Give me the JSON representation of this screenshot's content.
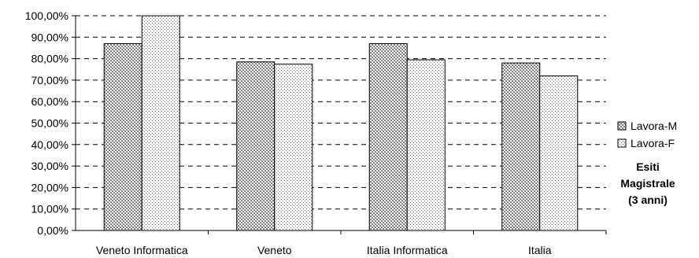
{
  "chart_data": {
    "type": "bar",
    "categories": [
      "Veneto Informatica",
      "Veneto",
      "Italia Informatica",
      "Italia"
    ],
    "series": [
      {
        "name": "Lavora-M",
        "values": [
          87,
          78.5,
          87,
          78
        ],
        "pattern": "crosshatch"
      },
      {
        "name": "Lavora-F",
        "values": [
          100,
          77.5,
          79.5,
          72
        ],
        "pattern": "dots"
      }
    ],
    "y_tick_labels": [
      "0,00%",
      "10,00%",
      "20,00%",
      "30,00%",
      "40,00%",
      "50,00%",
      "60,00%",
      "70,00%",
      "80,00%",
      "90,00%",
      "100,00%"
    ],
    "ylim": [
      0,
      100
    ],
    "grid": "dashed horizontal",
    "legend_placement": "right",
    "legend_title_lines": [
      "Esiti",
      "Magistrale",
      "(3 anni)"
    ],
    "colors": {
      "bar_border": "#000000",
      "grid": "#000000",
      "background": "#ffffff"
    }
  }
}
